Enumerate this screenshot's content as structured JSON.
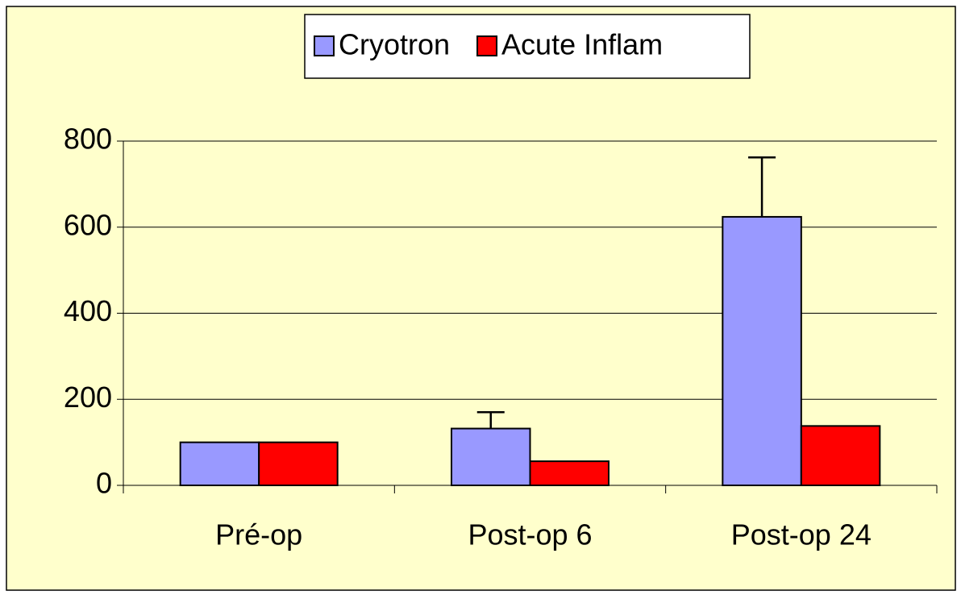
{
  "chart_data": {
    "type": "bar",
    "categories": [
      "Pré-op",
      "Post-op 6",
      "Post-op 24"
    ],
    "series": [
      {
        "name": "Cryotron",
        "color": "#9999ff",
        "values": [
          100,
          132,
          624
        ],
        "errors": [
          null,
          38,
          138
        ]
      },
      {
        "name": "Acute Inflam",
        "color": "#ff0000",
        "values": [
          100,
          56,
          138
        ]
      }
    ],
    "ylim": [
      0,
      800
    ],
    "yticks": [
      0,
      200,
      400,
      600,
      800
    ],
    "grid": true,
    "legend": "top"
  }
}
